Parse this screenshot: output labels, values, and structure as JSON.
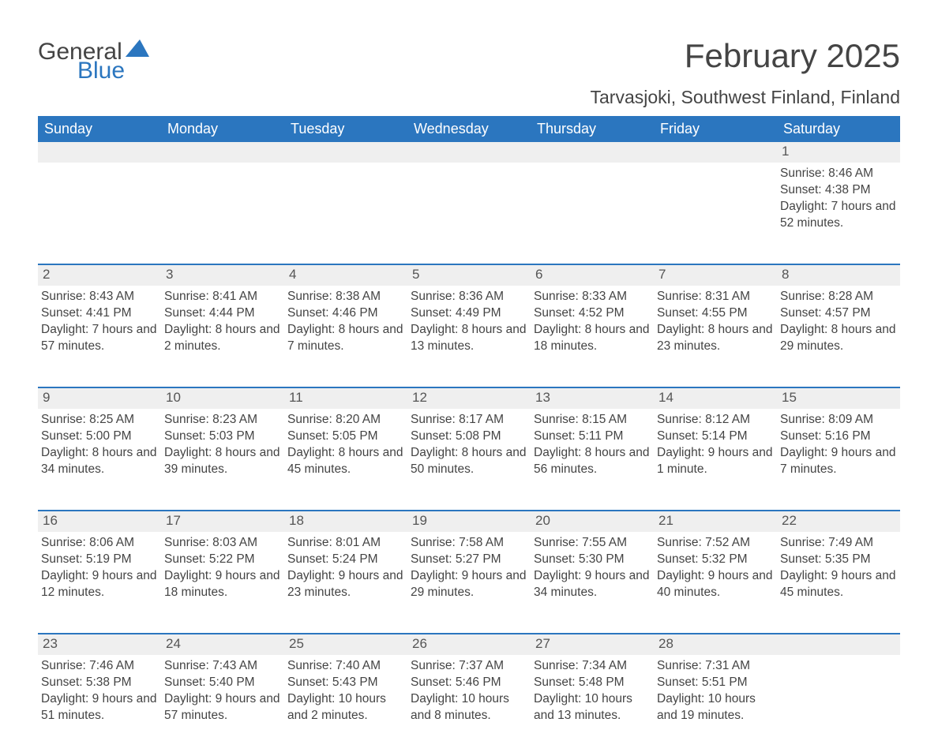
{
  "brand": {
    "part1": "General",
    "part2": "Blue",
    "sail_color": "#2b76bf"
  },
  "title": "February 2025",
  "location": "Tarvasjoki, Southwest Finland, Finland",
  "colors": {
    "header_bg": "#2b76bf",
    "header_text": "#ffffff",
    "daynum_bg": "#efefef",
    "row_divider": "#2b76bf",
    "body_text": "#444444",
    "page_bg": "#ffffff"
  },
  "typography": {
    "title_fontsize": 42,
    "location_fontsize": 23,
    "header_fontsize": 18,
    "daynum_fontsize": 17,
    "body_fontsize": 15.5
  },
  "weekdays": [
    "Sunday",
    "Monday",
    "Tuesday",
    "Wednesday",
    "Thursday",
    "Friday",
    "Saturday"
  ],
  "weeks": [
    [
      null,
      null,
      null,
      null,
      null,
      null,
      {
        "n": "1",
        "sunrise": "8:46 AM",
        "sunset": "4:38 PM",
        "daylight": "7 hours and 52 minutes."
      }
    ],
    [
      {
        "n": "2",
        "sunrise": "8:43 AM",
        "sunset": "4:41 PM",
        "daylight": "7 hours and 57 minutes."
      },
      {
        "n": "3",
        "sunrise": "8:41 AM",
        "sunset": "4:44 PM",
        "daylight": "8 hours and 2 minutes."
      },
      {
        "n": "4",
        "sunrise": "8:38 AM",
        "sunset": "4:46 PM",
        "daylight": "8 hours and 7 minutes."
      },
      {
        "n": "5",
        "sunrise": "8:36 AM",
        "sunset": "4:49 PM",
        "daylight": "8 hours and 13 minutes."
      },
      {
        "n": "6",
        "sunrise": "8:33 AM",
        "sunset": "4:52 PM",
        "daylight": "8 hours and 18 minutes."
      },
      {
        "n": "7",
        "sunrise": "8:31 AM",
        "sunset": "4:55 PM",
        "daylight": "8 hours and 23 minutes."
      },
      {
        "n": "8",
        "sunrise": "8:28 AM",
        "sunset": "4:57 PM",
        "daylight": "8 hours and 29 minutes."
      }
    ],
    [
      {
        "n": "9",
        "sunrise": "8:25 AM",
        "sunset": "5:00 PM",
        "daylight": "8 hours and 34 minutes."
      },
      {
        "n": "10",
        "sunrise": "8:23 AM",
        "sunset": "5:03 PM",
        "daylight": "8 hours and 39 minutes."
      },
      {
        "n": "11",
        "sunrise": "8:20 AM",
        "sunset": "5:05 PM",
        "daylight": "8 hours and 45 minutes."
      },
      {
        "n": "12",
        "sunrise": "8:17 AM",
        "sunset": "5:08 PM",
        "daylight": "8 hours and 50 minutes."
      },
      {
        "n": "13",
        "sunrise": "8:15 AM",
        "sunset": "5:11 PM",
        "daylight": "8 hours and 56 minutes."
      },
      {
        "n": "14",
        "sunrise": "8:12 AM",
        "sunset": "5:14 PM",
        "daylight": "9 hours and 1 minute."
      },
      {
        "n": "15",
        "sunrise": "8:09 AM",
        "sunset": "5:16 PM",
        "daylight": "9 hours and 7 minutes."
      }
    ],
    [
      {
        "n": "16",
        "sunrise": "8:06 AM",
        "sunset": "5:19 PM",
        "daylight": "9 hours and 12 minutes."
      },
      {
        "n": "17",
        "sunrise": "8:03 AM",
        "sunset": "5:22 PM",
        "daylight": "9 hours and 18 minutes."
      },
      {
        "n": "18",
        "sunrise": "8:01 AM",
        "sunset": "5:24 PM",
        "daylight": "9 hours and 23 minutes."
      },
      {
        "n": "19",
        "sunrise": "7:58 AM",
        "sunset": "5:27 PM",
        "daylight": "9 hours and 29 minutes."
      },
      {
        "n": "20",
        "sunrise": "7:55 AM",
        "sunset": "5:30 PM",
        "daylight": "9 hours and 34 minutes."
      },
      {
        "n": "21",
        "sunrise": "7:52 AM",
        "sunset": "5:32 PM",
        "daylight": "9 hours and 40 minutes."
      },
      {
        "n": "22",
        "sunrise": "7:49 AM",
        "sunset": "5:35 PM",
        "daylight": "9 hours and 45 minutes."
      }
    ],
    [
      {
        "n": "23",
        "sunrise": "7:46 AM",
        "sunset": "5:38 PM",
        "daylight": "9 hours and 51 minutes."
      },
      {
        "n": "24",
        "sunrise": "7:43 AM",
        "sunset": "5:40 PM",
        "daylight": "9 hours and 57 minutes."
      },
      {
        "n": "25",
        "sunrise": "7:40 AM",
        "sunset": "5:43 PM",
        "daylight": "10 hours and 2 minutes."
      },
      {
        "n": "26",
        "sunrise": "7:37 AM",
        "sunset": "5:46 PM",
        "daylight": "10 hours and 8 minutes."
      },
      {
        "n": "27",
        "sunrise": "7:34 AM",
        "sunset": "5:48 PM",
        "daylight": "10 hours and 13 minutes."
      },
      {
        "n": "28",
        "sunrise": "7:31 AM",
        "sunset": "5:51 PM",
        "daylight": "10 hours and 19 minutes."
      },
      null
    ]
  ],
  "labels": {
    "sunrise": "Sunrise: ",
    "sunset": "Sunset: ",
    "daylight": "Daylight: "
  }
}
